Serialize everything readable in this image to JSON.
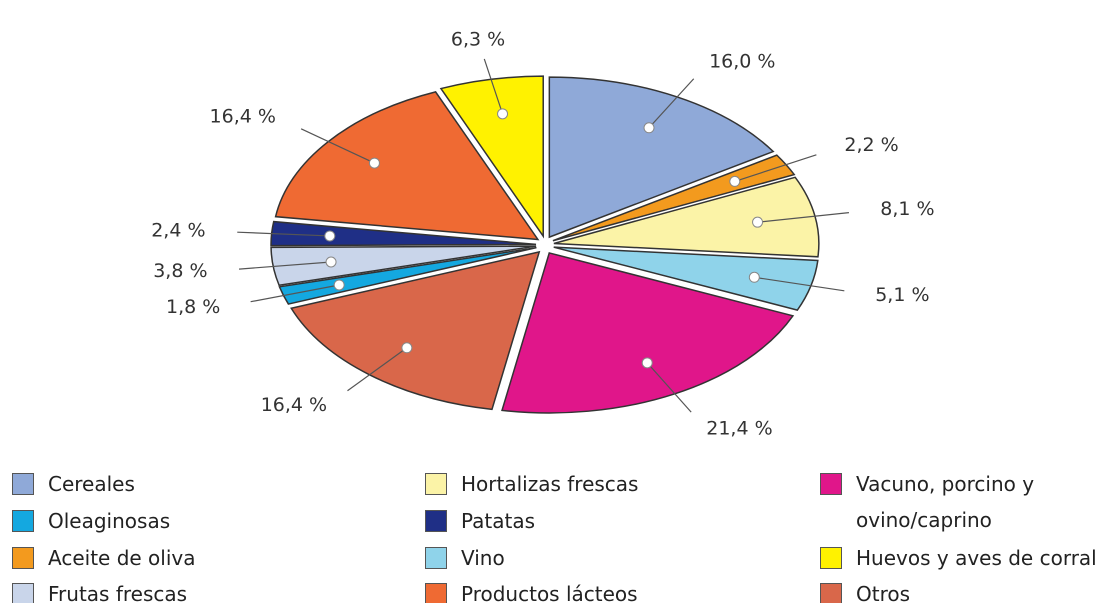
{
  "chart_data": {
    "type": "pie",
    "categories": [
      "Cereales",
      "Aceite de oliva",
      "Hortalizas frescas",
      "Vino",
      "Vacuno, porcino y\novino/caprino",
      "Otros",
      "Oleaginosas",
      "Frutas frescas",
      "Patatas",
      "Productos lácteos",
      "Huevos y aves de corral"
    ],
    "values": [
      16.0,
      2.2,
      8.1,
      5.1,
      21.4,
      16.4,
      1.8,
      3.8,
      2.4,
      16.4,
      6.3
    ],
    "value_labels": [
      "16,0 %",
      "2,2 %",
      "8,1 %",
      "5,1 %",
      "21,4 %",
      "16,4 %",
      "1,8 %",
      "3,8 %",
      "2,4 %",
      "16,4 %",
      "6,3 %"
    ],
    "colors": [
      "#8fa9d8",
      "#f39a1e",
      "#fbf3a7",
      "#8fd3ea",
      "#e0168a",
      "#d9674a",
      "#14a8e0",
      "#c9d5ea",
      "#1f2f86",
      "#ef6a33",
      "#fff200"
    ]
  }
}
